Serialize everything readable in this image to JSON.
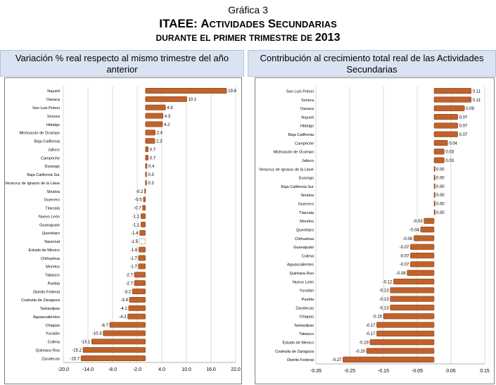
{
  "header": {
    "label": "Gráfica 3",
    "title": "ITAEE: Actividades Secundarias",
    "subtitle": "durante el primer trimestre de 2013"
  },
  "colors": {
    "bar": "#c0622a",
    "bar_highlight": "#ffffff",
    "grid": "#bfbfbf",
    "panel_bg": "#d9e3f2"
  },
  "chart_data": [
    {
      "type": "bar",
      "orientation": "horizontal",
      "title": "Variación % real respecto al mismo trimestre del año anterior",
      "categories": [
        "Nayarit",
        "Oaxaca",
        "San Luis Potosí",
        "Sonora",
        "Hidalgo",
        "Michoacán de Ocampo",
        "Baja California",
        "Jalisco",
        "Campeche",
        "Durango",
        "Baja California Sur",
        "Veracruz de Ignacio de la Llave",
        "Sinaloa",
        "Guerrero",
        "Tlaxcala",
        "Nuevo León",
        "Guanajuato",
        "Querétaro",
        "Nacional",
        "Estado de México",
        "Chihuahua",
        "Morelos",
        "Tabasco",
        "Puebla",
        "Distrito Federal",
        "Coahuila de Zaragoza",
        "Tamaulipas",
        "Aguascalientes",
        "Chiapas",
        "Yucatán",
        "Colima",
        "Quintana Roo",
        "Zacatecas"
      ],
      "values": [
        19.8,
        10.1,
        4.9,
        4.3,
        4.2,
        2.4,
        2.3,
        0.7,
        0.7,
        0.4,
        0.3,
        0.3,
        -0.2,
        -0.5,
        -0.7,
        -1.1,
        -1.1,
        -1.4,
        -1.5,
        -1.6,
        -1.7,
        -1.7,
        -2.7,
        -2.7,
        -3.2,
        -3.9,
        -4.1,
        -4.3,
        -8.7,
        -10.3,
        -13.1,
        -15.2,
        -15.7
      ],
      "value_labels": [
        "19.8",
        "10.1",
        "4.9",
        "4.3",
        "4.2",
        "2.4",
        "2.3",
        "0.7",
        "0.7",
        "0.4",
        "0.3",
        "0.3",
        "-0.2",
        "-0.5",
        "-0.7",
        "-1.1",
        "-1.1",
        "-1.4",
        "-1.5",
        "-1.6",
        "-1.7",
        "-1.7",
        "-2.7",
        "-2.7",
        "-3.2",
        "-3.9",
        "-4.1",
        "-4.3",
        "-8.7",
        "-10.3",
        "-13.1",
        "-15.2",
        "-15.7"
      ],
      "highlight": "Nacional",
      "xlim": [
        -20.0,
        22.0
      ],
      "xticks": [
        "-20.0",
        "-14.0",
        "-8.0",
        "-2.0",
        "4.0",
        "10.0",
        "16.0",
        "22.0"
      ],
      "grid": true
    },
    {
      "type": "bar",
      "orientation": "horizontal",
      "title": "Contribución al crecimiento total real de las Actividades Secundarias",
      "categories": [
        "San Luis Potosí",
        "Sonora",
        "Oaxaca",
        "Nayarit",
        "Hidalgo",
        "Baja California",
        "Campeche",
        "Michoacán de Ocampo",
        "Jalisco",
        "Veracruz de Ignacio de la Llave",
        "Durango",
        "Baja California Sur",
        "Sinaloa",
        "Guerrero",
        "Tlaxcala",
        "Morelos",
        "Querétaro",
        "Chihuahua",
        "Guanajuato",
        "Colima",
        "Aguascalientes",
        "Quintana Roo",
        "Nuevo León",
        "Yucatán",
        "Puebla",
        "Zacatecas",
        "Chiapas",
        "Tamaulipas",
        "Tabasco",
        "Estado de México",
        "Coahuila de Zaragoza",
        "Distrito Federal"
      ],
      "values": [
        0.11,
        0.11,
        0.09,
        0.07,
        0.07,
        0.07,
        0.04,
        0.03,
        0.03,
        0.002,
        0.002,
        0.002,
        0.002,
        0.002,
        0.002,
        -0.03,
        -0.04,
        -0.06,
        -0.07,
        -0.07,
        -0.07,
        -0.08,
        -0.12,
        -0.13,
        -0.13,
        -0.13,
        -0.15,
        -0.17,
        -0.17,
        -0.19,
        -0.2,
        -0.27
      ],
      "value_labels": [
        "0.11",
        "0.11",
        "0.09",
        "0.07",
        "0.07",
        "0.07",
        "0.04",
        "0.03",
        "0.03",
        "0.00",
        "0.00",
        "0.00",
        "0.00",
        "0.00",
        "0.00",
        "-0.03",
        "-0.04",
        "-0.06",
        "-0.07",
        "-0.07",
        "-0.07",
        "-0.08",
        "-0.12",
        "-0.13",
        "-0.13",
        "-0.13",
        "-0.15",
        "-0.17",
        "-0.17",
        "-0.19",
        "-0.20",
        "-0.27"
      ],
      "xlim": [
        -0.35,
        0.15
      ],
      "xticks": [
        "-0.35",
        "-0.25",
        "-0.15",
        "-0.05",
        "0.05",
        "0.15"
      ],
      "grid": true
    }
  ]
}
